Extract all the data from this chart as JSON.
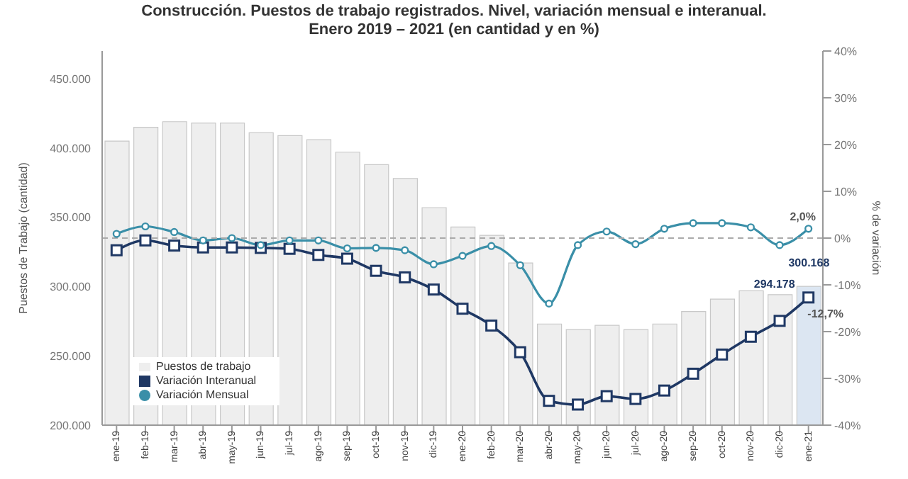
{
  "chart_data": {
    "type": "bar",
    "title": "Construcción. Puestos de trabajo registrados. Nivel, variación mensual e interanual.",
    "subtitle": "Enero 2019 – 2021 (en cantidad y en %)",
    "ylabel": "Puestos de Trabajo (cantidad)",
    "y2label": "% de variación",
    "categories": [
      "ene-19",
      "feb-19",
      "mar-19",
      "abr-19",
      "may-19",
      "jun-19",
      "jul-19",
      "ago-19",
      "sep-19",
      "oct-19",
      "nov-19",
      "dic-19",
      "ene-20",
      "feb-20",
      "mar-20",
      "abr-20",
      "may-20",
      "jun-20",
      "jul-20",
      "ago-20",
      "sep-20",
      "oct-20",
      "nov-20",
      "dic-20",
      "ene-21"
    ],
    "series": [
      {
        "name": "Puestos de trabajo",
        "color": "#eeeeee",
        "colors": [
          "#eeeeee",
          "#eeeeee",
          "#eeeeee",
          "#eeeeee",
          "#eeeeee",
          "#eeeeee",
          "#eeeeee",
          "#eeeeee",
          "#eeeeee",
          "#eeeeee",
          "#eeeeee",
          "#eeeeee",
          "#eeeeee",
          "#eeeeee",
          "#eeeeee",
          "#eeeeee",
          "#eeeeee",
          "#eeeeee",
          "#eeeeee",
          "#eeeeee",
          "#eeeeee",
          "#eeeeee",
          "#eeeeee",
          "#eeeeee",
          "#dce6f2"
        ],
        "values": [
          405000,
          415000,
          419000,
          418000,
          418000,
          411000,
          409000,
          406000,
          397000,
          388000,
          378000,
          357000,
          343000,
          337000,
          317000,
          273000,
          269000,
          272000,
          269000,
          273000,
          282000,
          291000,
          297000,
          294178,
          300168
        ],
        "value_labels": [
          null,
          null,
          null,
          null,
          null,
          null,
          null,
          null,
          null,
          null,
          null,
          null,
          null,
          null,
          null,
          null,
          null,
          null,
          null,
          null,
          null,
          null,
          null,
          "294.178",
          "300.168"
        ]
      },
      {
        "name": "Variación Interanual",
        "type": "line",
        "axis": "y2",
        "color": "#1f3864",
        "marker": "square",
        "values": [
          -2.6,
          -0.5,
          -1.6,
          -2.0,
          -2.0,
          -2.1,
          -2.3,
          -3.6,
          -4.4,
          -7.0,
          -8.4,
          -11.0,
          -15.1,
          -18.7,
          -24.4,
          -34.8,
          -35.6,
          -33.8,
          -34.4,
          -32.6,
          -29.0,
          -24.9,
          -21.1,
          -17.7,
          -12.7
        ],
        "value_labels": [
          null,
          null,
          null,
          null,
          null,
          null,
          null,
          null,
          null,
          null,
          null,
          null,
          null,
          null,
          null,
          null,
          null,
          null,
          null,
          null,
          null,
          null,
          null,
          null,
          "-12,7%"
        ]
      },
      {
        "name": "Variación Mensual",
        "type": "line",
        "axis": "y2",
        "color": "#3a8fa8",
        "marker": "circle",
        "values": [
          0.9,
          2.5,
          1.3,
          -0.5,
          0.0,
          -1.5,
          -0.5,
          -0.5,
          -2.2,
          -2.1,
          -2.6,
          -5.6,
          -3.8,
          -1.7,
          -5.8,
          -14.0,
          -1.5,
          1.4,
          -1.3,
          2.0,
          3.2,
          3.2,
          2.3,
          -1.5,
          2.0
        ],
        "value_labels": [
          null,
          null,
          null,
          null,
          null,
          null,
          null,
          null,
          null,
          null,
          null,
          null,
          null,
          null,
          null,
          null,
          null,
          null,
          null,
          null,
          null,
          null,
          null,
          null,
          "2,0%"
        ]
      }
    ],
    "ylim": [
      200000,
      470000
    ],
    "yticks": [
      {
        "value": 200000,
        "label": "200.000"
      },
      {
        "value": 250000,
        "label": "250.000"
      },
      {
        "value": 300000,
        "label": "300.000"
      },
      {
        "value": 350000,
        "label": "350.000"
      },
      {
        "value": 400000,
        "label": "400.000"
      },
      {
        "value": 450000,
        "label": "450.000"
      }
    ],
    "y2lim": [
      -40,
      40
    ],
    "y2ticks": [
      {
        "value": -40,
        "label": "-40%"
      },
      {
        "value": -30,
        "label": "-30%"
      },
      {
        "value": -20,
        "label": "-20%"
      },
      {
        "value": -10,
        "label": "-10%"
      },
      {
        "value": 0,
        "label": "0%"
      },
      {
        "value": 10,
        "label": "10%"
      },
      {
        "value": 20,
        "label": "20%"
      },
      {
        "value": 30,
        "label": "30%"
      },
      {
        "value": 40,
        "label": "40%"
      }
    ],
    "ref_lines": [
      {
        "axis": "y2",
        "value": 0,
        "color": "#aaaaaa",
        "line_style": "dashed"
      }
    ],
    "legend": "bottom left",
    "grid": false
  }
}
